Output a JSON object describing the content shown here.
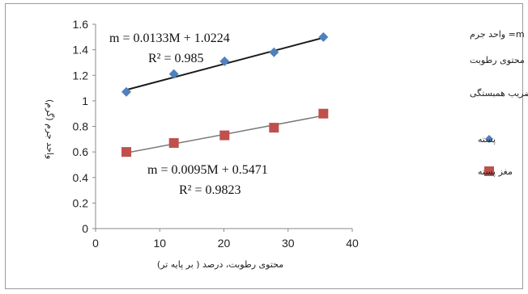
{
  "chart_data": {
    "type": "scatter",
    "xlabel": "محتوی رطوبت، درصد ( بر پایه تر)",
    "ylabel": "واحد جرم (گرم)",
    "xlim": [
      0,
      40
    ],
    "ylim": [
      0,
      1.6
    ],
    "x_ticks": [
      "0",
      "10",
      "20",
      "30",
      "40"
    ],
    "y_ticks": [
      "0",
      "0.2",
      "0.4",
      "0.6",
      "0.8",
      "1",
      "1.2",
      "1.4",
      "1.6"
    ],
    "grid": false,
    "series": [
      {
        "name": "پسته",
        "color": "#4f81bd",
        "marker": "diamond",
        "x": [
          4.8,
          12.2,
          20.1,
          27.8,
          35.5
        ],
        "y": [
          1.07,
          1.21,
          1.31,
          1.38,
          1.5
        ],
        "trendline": {
          "slope": 0.0133,
          "intercept": 1.0224,
          "color": "#1a1a1a"
        },
        "equation": "m = 0.0133M + 1.0224",
        "r2": "R² = 0.985"
      },
      {
        "name": "مغز پسته",
        "color": "#c0504d",
        "marker": "square",
        "x": [
          4.8,
          12.2,
          20.1,
          27.8,
          35.5
        ],
        "y": [
          0.6,
          0.67,
          0.73,
          0.79,
          0.9
        ],
        "trendline": {
          "slope": 0.0095,
          "intercept": 0.5471,
          "color": "#7a7a7a"
        },
        "equation": "m = 0.0095M + 0.5471",
        "r2": "R² = 0.9823"
      }
    ],
    "annotations": [
      "m= واحد جرم",
      "M= محتوی رطوبت",
      "R= ضریب همبستگی"
    ]
  }
}
